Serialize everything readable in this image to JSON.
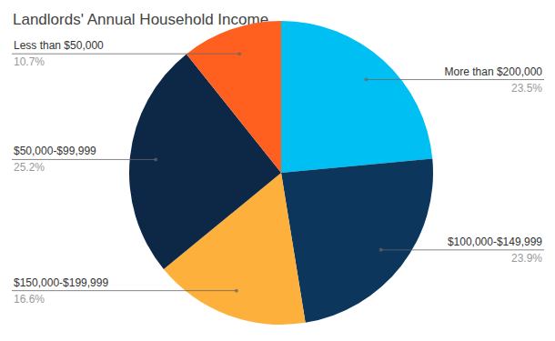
{
  "chart_data": {
    "type": "pie",
    "title": "Landlords' Annual Household Income",
    "categories": [
      "More than $200,000",
      "$100,000-$149,999",
      "$150,000-$199,999",
      "$50,000-$99,999",
      "Less than $50,000"
    ],
    "values": [
      23.5,
      23.9,
      16.6,
      25.2,
      10.7
    ],
    "value_labels": [
      "23.5%",
      "23.9%",
      "16.6%",
      "25.2%",
      "10.7%"
    ],
    "colors": [
      "#00bff3",
      "#0c365c",
      "#fdb03c",
      "#0d2747",
      "#ff5f1f"
    ],
    "data_labels": true
  }
}
